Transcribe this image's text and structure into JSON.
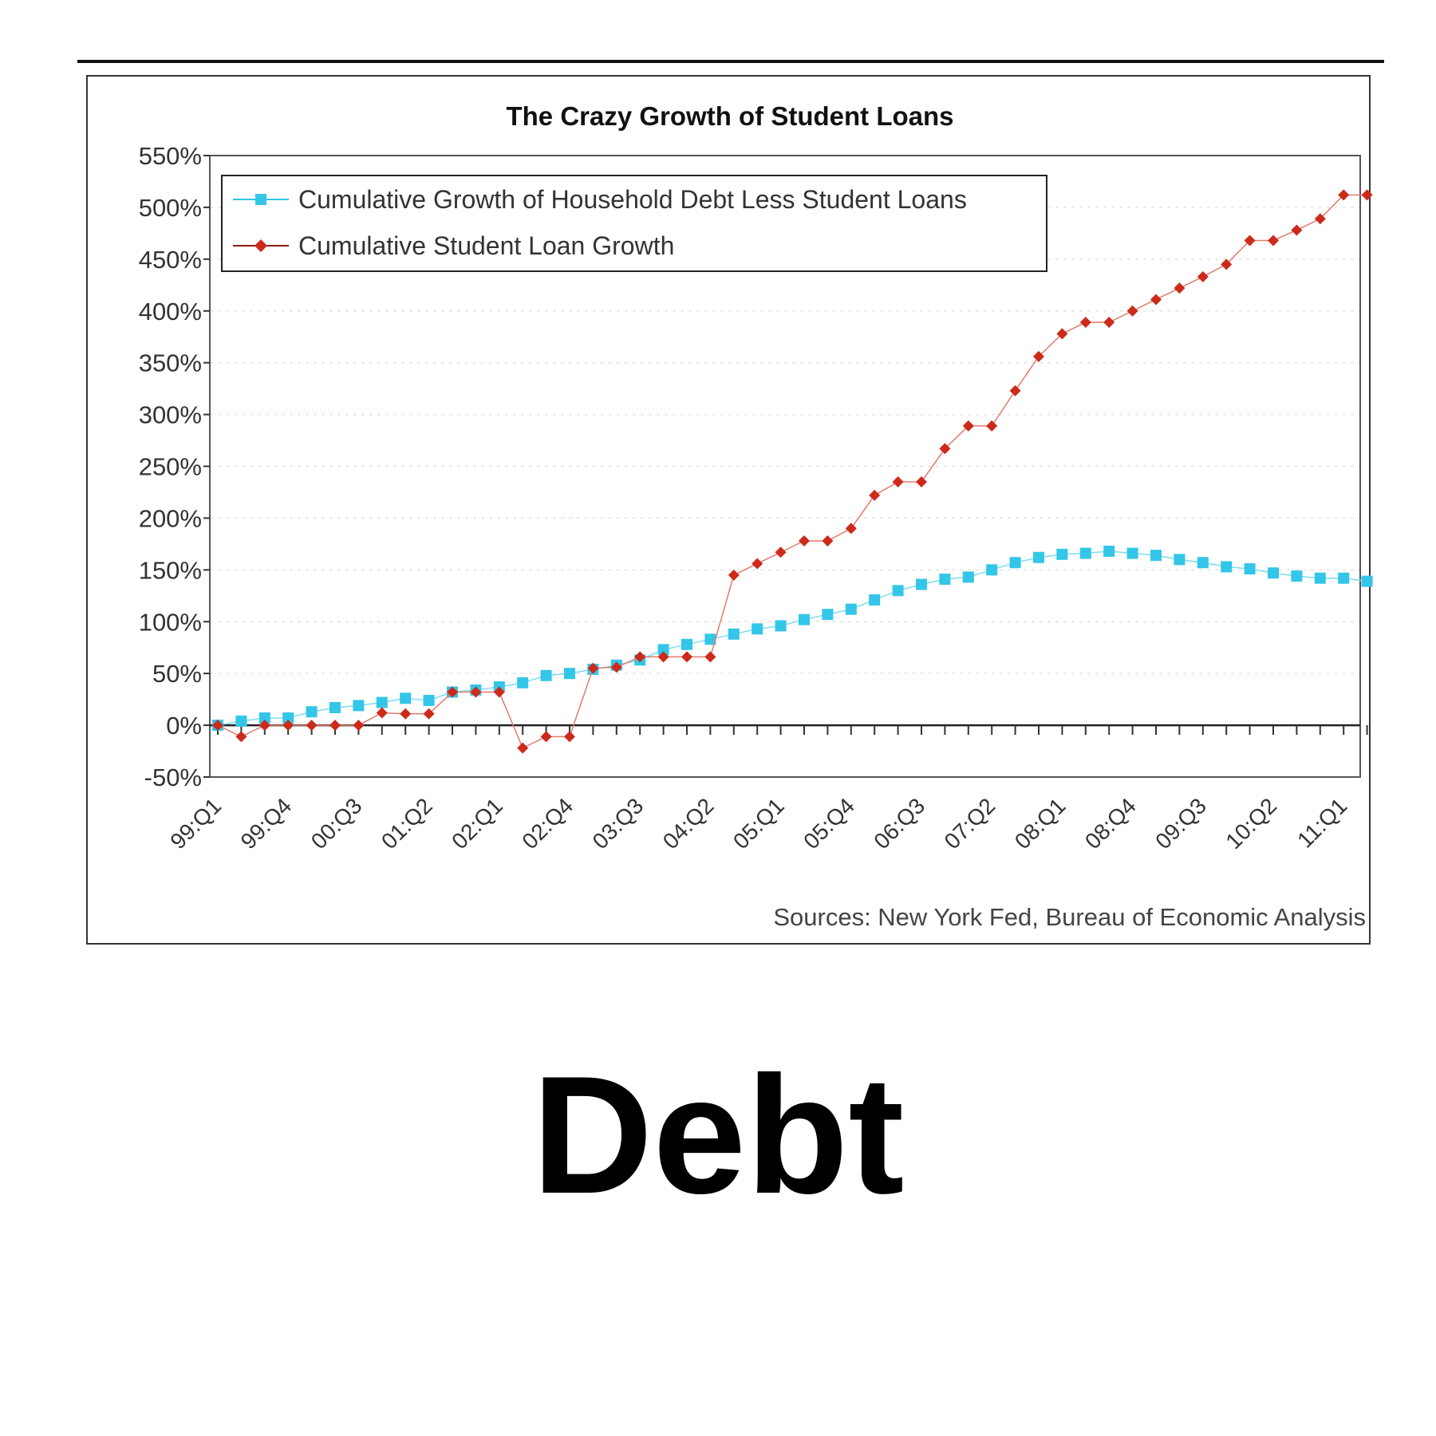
{
  "caption": "Debt",
  "chart_data": {
    "type": "line",
    "title": "The Crazy Growth of Student Loans",
    "source": "Sources: New York Fed, Bureau of Economic Analysis",
    "xlabel": "",
    "ylabel": "",
    "ylim": [
      -50,
      550
    ],
    "yticks": [
      "-50%",
      "0%",
      "50%",
      "100%",
      "150%",
      "200%",
      "250%",
      "300%",
      "350%",
      "400%",
      "450%",
      "500%",
      "550%"
    ],
    "ytick_values": [
      -50,
      0,
      50,
      100,
      150,
      200,
      250,
      300,
      350,
      400,
      450,
      500,
      550
    ],
    "x": [
      "99:Q1",
      "99:Q2",
      "99:Q3",
      "99:Q4",
      "00:Q1",
      "00:Q2",
      "00:Q3",
      "00:Q4",
      "01:Q1",
      "01:Q2",
      "01:Q3",
      "01:Q4",
      "02:Q1",
      "02:Q2",
      "02:Q3",
      "02:Q4",
      "03:Q1",
      "03:Q2",
      "03:Q3",
      "03:Q4",
      "04:Q1",
      "04:Q2",
      "04:Q3",
      "04:Q4",
      "05:Q1",
      "05:Q2",
      "05:Q3",
      "05:Q4",
      "06:Q1",
      "06:Q2",
      "06:Q3",
      "06:Q4",
      "07:Q1",
      "07:Q2",
      "07:Q3",
      "07:Q4",
      "08:Q1",
      "08:Q2",
      "08:Q3",
      "08:Q4",
      "09:Q1",
      "09:Q2",
      "09:Q3",
      "09:Q4",
      "10:Q1",
      "10:Q2",
      "10:Q3",
      "10:Q4",
      "11:Q1",
      "11:Q2"
    ],
    "x_tick_labels": [
      "99:Q1",
      "99:Q4",
      "00:Q3",
      "01:Q2",
      "02:Q1",
      "02:Q4",
      "03:Q3",
      "04:Q2",
      "05:Q1",
      "05:Q4",
      "06:Q3",
      "07:Q2",
      "08:Q1",
      "08:Q4",
      "09:Q3",
      "10:Q2",
      "11:Q1"
    ],
    "grid": "horizontal dotted",
    "legend": "top-left",
    "series": [
      {
        "name": "Cumulative Growth of Household Debt Less Student Loans",
        "color": "#33c6e8",
        "marker": "square",
        "values": [
          0,
          4,
          7,
          7,
          13,
          17,
          19,
          22,
          26,
          24,
          32,
          34,
          37,
          41,
          48,
          50,
          54,
          58,
          63,
          73,
          78,
          83,
          88,
          93,
          96,
          102,
          107,
          112,
          121,
          130,
          136,
          141,
          143,
          150,
          157,
          162,
          165,
          166,
          168,
          166,
          164,
          160,
          157,
          153,
          151,
          147,
          144,
          142,
          142,
          139
        ]
      },
      {
        "name": "Cumulative Student Loan Growth",
        "color": "#cc2a1a",
        "marker": "diamond",
        "values": [
          0,
          -11,
          0,
          0,
          0,
          0,
          0,
          12,
          11,
          11,
          32,
          32,
          32,
          -22,
          -11,
          -11,
          55,
          56,
          66,
          66,
          66,
          66,
          145,
          156,
          167,
          178,
          178,
          190,
          222,
          235,
          235,
          267,
          289,
          289,
          323,
          356,
          378,
          389,
          389,
          400,
          411,
          422,
          433,
          445,
          468,
          468,
          478,
          489,
          512,
          512
        ]
      }
    ]
  }
}
